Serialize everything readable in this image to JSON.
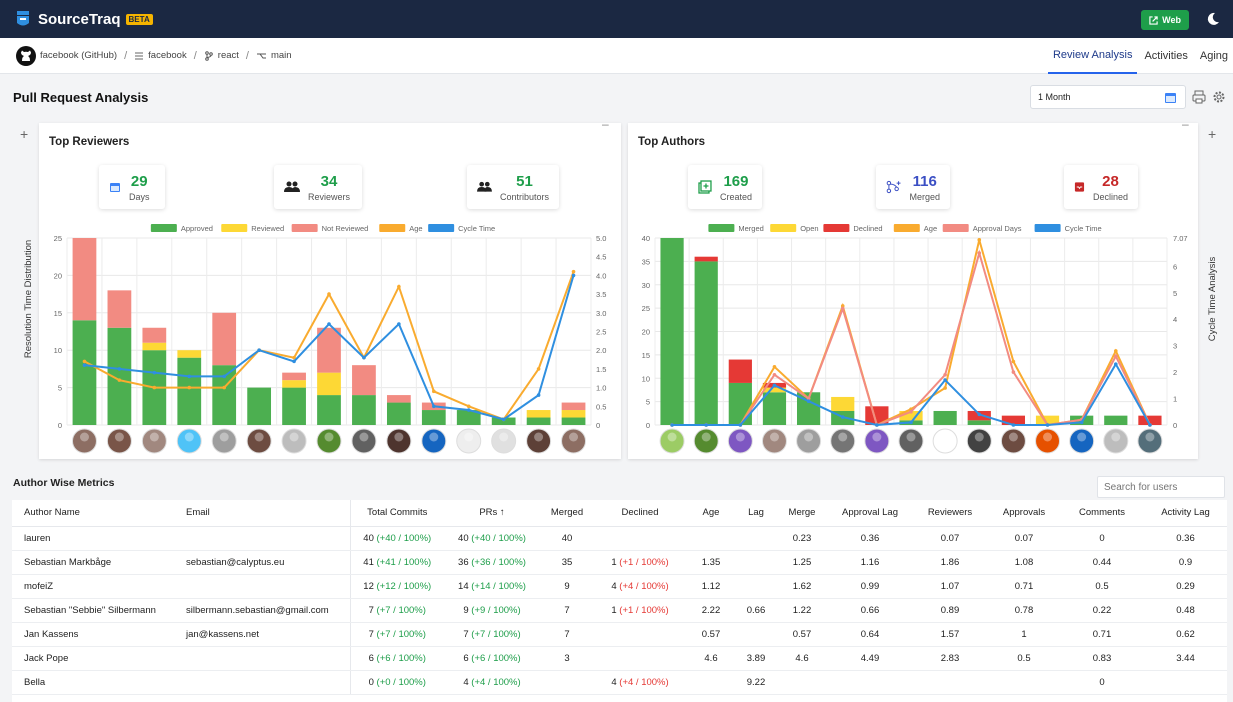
{
  "app": {
    "name": "SourceTraq",
    "badge": "BETA",
    "web_button": "Web"
  },
  "breadcrumb": [
    {
      "label": "facebook (GitHub)",
      "icon": "github-icon"
    },
    {
      "label": "facebook",
      "icon": "org-icon"
    },
    {
      "label": "react",
      "icon": "repo-icon"
    },
    {
      "label": "main",
      "icon": "branch-icon"
    }
  ],
  "nav_tabs": [
    {
      "label": "Review Analysis",
      "active": true
    },
    {
      "label": "Activities",
      "active": false
    },
    {
      "label": "Aging",
      "active": false
    }
  ],
  "page_title": "Pull Request Analysis",
  "period_select": {
    "value": "1 Month"
  },
  "reviewers_panel": {
    "title": "Top Reviewers",
    "y_axis_label": "Resolution Time Distribution",
    "stats": [
      {
        "value": "29",
        "label": "Days",
        "icon": "calendar-icon",
        "color": "#1e9e4a"
      },
      {
        "value": "34",
        "label": "Reviewers",
        "icon": "people-icon",
        "color": "#1e9e4a"
      },
      {
        "value": "51",
        "label": "Contributors",
        "icon": "people-icon",
        "color": "#1e9e4a"
      }
    ]
  },
  "authors_panel": {
    "title": "Top Authors",
    "y_axis_label": "Cycle Time Analysis",
    "stats": [
      {
        "value": "169",
        "label": "Created",
        "icon": "add-square-icon",
        "color": "#1e9e4a"
      },
      {
        "value": "116",
        "label": "Merged",
        "icon": "merge-icon",
        "color": "#3b4fc4"
      },
      {
        "value": "28",
        "label": "Declined",
        "icon": "inbox-declined-icon",
        "color": "#c62828"
      }
    ]
  },
  "chart_data": [
    {
      "type": "bar",
      "name": "Top Reviewers",
      "stacked": true,
      "categories": [
        "1",
        "2",
        "3",
        "4",
        "5",
        "6",
        "7",
        "8",
        "9",
        "10",
        "11",
        "12",
        "13",
        "14",
        "15"
      ],
      "series": [
        {
          "name": "Approved",
          "color": "#4caf50",
          "values": [
            14,
            13,
            10,
            9,
            8,
            5,
            5,
            4,
            4,
            3,
            2,
            2,
            1,
            1,
            1
          ]
        },
        {
          "name": "Reviewed",
          "color": "#fdd835",
          "values": [
            0,
            0,
            1,
            1,
            0,
            0,
            1,
            3,
            0,
            0,
            0,
            0,
            0,
            1,
            1
          ]
        },
        {
          "name": "Not Reviewed",
          "color": "#f28b82",
          "values": [
            11,
            5,
            2,
            0,
            7,
            0,
            1,
            6,
            4,
            1,
            1,
            0,
            0,
            0,
            1
          ]
        }
      ],
      "lines": [
        {
          "name": "Age",
          "color": "#f9ab2f",
          "axis": "right",
          "values": [
            1.7,
            1.2,
            1.0,
            1.0,
            1.0,
            2.0,
            1.8,
            3.5,
            1.8,
            3.7,
            0.9,
            0.5,
            0.15,
            1.5,
            4.1
          ]
        },
        {
          "name": "Cycle Time",
          "color": "#2f8fe0",
          "axis": "right",
          "values": [
            1.6,
            1.5,
            1.4,
            1.3,
            1.3,
            2.0,
            1.7,
            2.7,
            1.8,
            2.7,
            0.5,
            0.4,
            0.15,
            0.8,
            4.0
          ]
        }
      ],
      "y_left": {
        "min": 0,
        "max": 25,
        "ticks": [
          0,
          5,
          10,
          15,
          20,
          25
        ]
      },
      "y_right": {
        "min": 0,
        "max": 5,
        "ticks": [
          "0",
          "0.5",
          "1.0",
          "1.5",
          "2.0",
          "2.5",
          "3.0",
          "3.5",
          "4.0",
          "4.5",
          "5.0"
        ]
      },
      "ylabel": "Resolution Time Distribution",
      "grid": true,
      "legend": "top"
    },
    {
      "type": "bar",
      "name": "Top Authors",
      "stacked": true,
      "categories": [
        "1",
        "2",
        "3",
        "4",
        "5",
        "6",
        "7",
        "8",
        "9",
        "10",
        "11",
        "12",
        "13",
        "14",
        "15"
      ],
      "series": [
        {
          "name": "Merged",
          "color": "#4caf50",
          "values": [
            40,
            35,
            9,
            7,
            7,
            3,
            0,
            1,
            3,
            1,
            0,
            0,
            2,
            2,
            0
          ]
        },
        {
          "name": "Open",
          "color": "#fdd835",
          "values": [
            0,
            0,
            0,
            1,
            0,
            3,
            0,
            2,
            0,
            0,
            0,
            2,
            0,
            0,
            0
          ]
        },
        {
          "name": "Declined",
          "color": "#e53935",
          "values": [
            0,
            1,
            5,
            1,
            0,
            0,
            4,
            0,
            0,
            2,
            2,
            0,
            0,
            0,
            2
          ]
        }
      ],
      "lines": [
        {
          "name": "Age",
          "color": "#f9ab2f",
          "axis": "right",
          "values": [
            0,
            0,
            0,
            2.2,
            1.0,
            4.5,
            0,
            0.6,
            1.4,
            7.0,
            2.4,
            0,
            0.2,
            2.8,
            0
          ]
        },
        {
          "name": "Approval Days",
          "color": "#f28b82",
          "axis": "right",
          "values": [
            0,
            0,
            0,
            1.9,
            1.0,
            4.4,
            0,
            0.5,
            1.9,
            6.5,
            2.0,
            0,
            0.2,
            2.6,
            0
          ]
        },
        {
          "name": "Cycle Time",
          "color": "#2f8fe0",
          "axis": "right",
          "values": [
            0,
            0,
            0,
            1.5,
            0.9,
            0.3,
            0,
            0.1,
            1.7,
            0.4,
            0,
            0,
            0.1,
            2.3,
            0
          ]
        }
      ],
      "y_left": {
        "min": 0,
        "max": 40,
        "ticks": [
          0,
          5,
          10,
          15,
          20,
          25,
          30,
          35,
          40
        ]
      },
      "y_right": {
        "min": 0,
        "max": 7.07,
        "ticks": [
          "0",
          "1",
          "2",
          "3",
          "4",
          "5",
          "6",
          "7.07"
        ]
      },
      "ylabel": "Cycle Time Analysis",
      "grid": true,
      "legend": "top"
    }
  ],
  "metrics": {
    "title": "Author Wise Metrics",
    "search_placeholder": "Search for users",
    "columns": [
      "Author Name",
      "Email",
      "Total Commits",
      "PRs ↑",
      "Merged",
      "Declined",
      "Age",
      "Lag",
      "Merge",
      "Approval Lag",
      "Reviewers",
      "Approvals",
      "Comments",
      "Activity Lag"
    ],
    "rows": [
      {
        "name": "lauren",
        "email": "",
        "commits": "40",
        "commits_delta": "(+40 / 100%)",
        "prs": "40",
        "prs_delta": "(+40 / 100%)",
        "merged": "40",
        "declined": "",
        "declined_delta": "",
        "age": "",
        "lag": "",
        "merge": "0.23",
        "approval_lag": "0.36",
        "reviewers": "0.07",
        "approvals": "0.07",
        "comments": "0",
        "activity_lag": "0.36"
      },
      {
        "name": "Sebastian Markbåge",
        "email": "sebastian@calyptus.eu",
        "commits": "41",
        "commits_delta": "(+41 / 100%)",
        "prs": "36",
        "prs_delta": "(+36 / 100%)",
        "merged": "35",
        "declined": "1",
        "declined_delta": "(+1 / 100%)",
        "age": "1.35",
        "lag": "",
        "merge": "1.25",
        "approval_lag": "1.16",
        "reviewers": "1.86",
        "approvals": "1.08",
        "comments": "0.44",
        "activity_lag": "0.9"
      },
      {
        "name": "mofeiZ",
        "email": "",
        "commits": "12",
        "commits_delta": "(+12 / 100%)",
        "prs": "14",
        "prs_delta": "(+14 / 100%)",
        "merged": "9",
        "declined": "4",
        "declined_delta": "(+4 / 100%)",
        "age": "1.12",
        "lag": "",
        "merge": "1.62",
        "approval_lag": "0.99",
        "reviewers": "1.07",
        "approvals": "0.71",
        "comments": "0.5",
        "activity_lag": "0.29"
      },
      {
        "name": "Sebastian \"Sebbie\" Silbermann",
        "email": "silbermann.sebastian@gmail.com",
        "commits": "7",
        "commits_delta": "(+7 / 100%)",
        "prs": "9",
        "prs_delta": "(+9 / 100%)",
        "merged": "7",
        "declined": "1",
        "declined_delta": "(+1 / 100%)",
        "age": "2.22",
        "lag": "0.66",
        "merge": "1.22",
        "approval_lag": "0.66",
        "reviewers": "0.89",
        "approvals": "0.78",
        "comments": "0.22",
        "activity_lag": "0.48"
      },
      {
        "name": "Jan Kassens",
        "email": "jan@kassens.net",
        "commits": "7",
        "commits_delta": "(+7 / 100%)",
        "prs": "7",
        "prs_delta": "(+7 / 100%)",
        "merged": "7",
        "declined": "",
        "declined_delta": "",
        "age": "0.57",
        "lag": "",
        "merge": "0.57",
        "approval_lag": "0.64",
        "reviewers": "1.57",
        "approvals": "1",
        "comments": "0.71",
        "activity_lag": "0.62"
      },
      {
        "name": "Jack Pope",
        "email": "",
        "commits": "6",
        "commits_delta": "(+6 / 100%)",
        "prs": "6",
        "prs_delta": "(+6 / 100%)",
        "merged": "3",
        "declined": "",
        "declined_delta": "",
        "age": "4.6",
        "lag": "3.89",
        "merge": "4.6",
        "approval_lag": "4.49",
        "reviewers": "2.83",
        "approvals": "0.5",
        "comments": "0.83",
        "activity_lag": "3.44"
      },
      {
        "name": "Bella",
        "email": "",
        "commits": "0",
        "commits_delta": "(+0 / 100%)",
        "prs": "4",
        "prs_delta": "(+4 / 100%)",
        "merged": "",
        "declined": "4",
        "declined_delta": "(+4 / 100%)",
        "age": "",
        "lag": "9.22",
        "merge": "",
        "approval_lag": "",
        "reviewers": "",
        "approvals": "",
        "comments": "0",
        "activity_lag": ""
      }
    ]
  }
}
